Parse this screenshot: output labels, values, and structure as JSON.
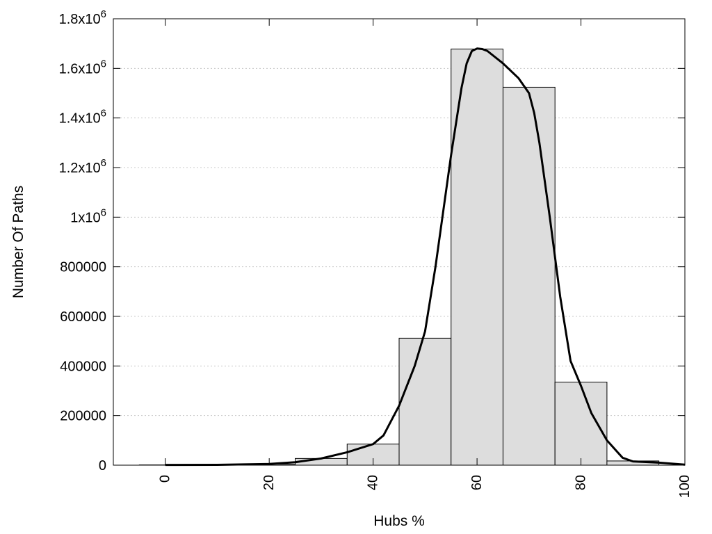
{
  "chart_data": {
    "type": "bar",
    "xlabel": "Hubs %",
    "ylabel": "Number Of Paths",
    "xlim": [
      -10,
      100
    ],
    "ylim": [
      0,
      1800000
    ],
    "grid": true,
    "x_ticks": [
      {
        "value": 0,
        "label": "0"
      },
      {
        "value": 20,
        "label": "20"
      },
      {
        "value": 40,
        "label": "40"
      },
      {
        "value": 60,
        "label": "60"
      },
      {
        "value": 80,
        "label": "80"
      },
      {
        "value": 100,
        "label": "100"
      }
    ],
    "y_ticks": [
      {
        "value": 0,
        "label": "0",
        "exp": ""
      },
      {
        "value": 200000,
        "label": "200000",
        "exp": ""
      },
      {
        "value": 400000,
        "label": "400000",
        "exp": ""
      },
      {
        "value": 600000,
        "label": "600000",
        "exp": ""
      },
      {
        "value": 800000,
        "label": "800000",
        "exp": ""
      },
      {
        "value": 1000000,
        "label": "1x10",
        "exp": "6"
      },
      {
        "value": 1200000,
        "label": "1.2x10",
        "exp": "6"
      },
      {
        "value": 1400000,
        "label": "1.4x10",
        "exp": "6"
      },
      {
        "value": 1600000,
        "label": "1.6x10",
        "exp": "6"
      },
      {
        "value": 1800000,
        "label": "1.8x10",
        "exp": "6"
      }
    ],
    "bins": [
      {
        "x": 0,
        "value": 1000
      },
      {
        "x": 10,
        "value": 1500
      },
      {
        "x": 20,
        "value": 4000
      },
      {
        "x": 30,
        "value": 27000
      },
      {
        "x": 40,
        "value": 85000
      },
      {
        "x": 50,
        "value": 512000
      },
      {
        "x": 60,
        "value": 1678000
      },
      {
        "x": 70,
        "value": 1524000
      },
      {
        "x": 80,
        "value": 335000
      },
      {
        "x": 90,
        "value": 17000
      }
    ],
    "bin_width": 10,
    "series": [
      {
        "type": "line",
        "x": [
          0,
          10,
          15,
          20,
          25,
          30,
          35,
          40,
          42,
          45,
          48,
          50,
          52,
          55,
          57,
          58,
          59,
          60,
          61,
          62,
          65,
          68,
          70,
          71,
          72,
          74,
          76,
          78,
          80,
          82,
          85,
          88,
          90,
          95,
          100
        ],
        "y": [
          1000,
          1500,
          3000,
          5000,
          12000,
          27000,
          52000,
          85000,
          120000,
          240000,
          400000,
          540000,
          800000,
          1250000,
          1520000,
          1620000,
          1670000,
          1680000,
          1678000,
          1670000,
          1620000,
          1560000,
          1500000,
          1420000,
          1300000,
          1000000,
          680000,
          420000,
          320000,
          210000,
          100000,
          30000,
          15000,
          10000,
          2000
        ]
      }
    ]
  }
}
